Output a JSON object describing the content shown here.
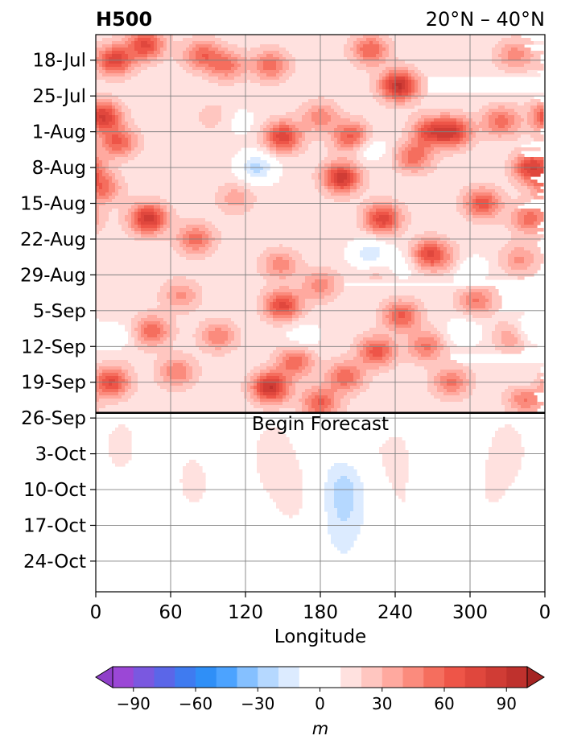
{
  "chart_data": {
    "type": "heatmap",
    "title": "H500",
    "subtitle_right": "20°N – 40°N",
    "xlabel": "Longitude",
    "ylabel": "",
    "x_ticks": [
      "0",
      "60",
      "120",
      "180",
      "240",
      "300",
      "0"
    ],
    "x_tick_values": [
      0,
      60,
      120,
      180,
      240,
      300,
      360
    ],
    "xlim": [
      0,
      360
    ],
    "y_ticks": [
      "18-Jul",
      "25-Jul",
      "1-Aug",
      "8-Aug",
      "15-Aug",
      "22-Aug",
      "29-Aug",
      "5-Sep",
      "12-Sep",
      "19-Sep",
      "26-Sep",
      "3-Oct",
      "10-Oct",
      "17-Oct",
      "24-Oct"
    ],
    "ylim": [
      "13-Jul",
      "30-Oct"
    ],
    "y_inverted": true,
    "grid": true,
    "forecast_start": "25-Sep",
    "annotation": "Begin Forecast",
    "colorbar": {
      "label": "m",
      "ticks": [
        "−90",
        "−60",
        "−30",
        "0",
        "30",
        "60",
        "90"
      ],
      "tick_values": [
        -90,
        -60,
        -30,
        0,
        30,
        60,
        90
      ],
      "levels": [
        -100,
        -90,
        -80,
        -70,
        -60,
        -50,
        -40,
        -30,
        -20,
        -10,
        10,
        20,
        30,
        40,
        50,
        60,
        70,
        80,
        90,
        100
      ],
      "colors": [
        "#9b47d6",
        "#7a58e0",
        "#5b66e8",
        "#3f7bf0",
        "#2f8ff7",
        "#4ca3ff",
        "#85c0ff",
        "#b5d8ff",
        "#dcebff",
        "#ffffff",
        "#ffe1df",
        "#ffc6c0",
        "#ffa99f",
        "#fb8b7d",
        "#f56e5e",
        "#ee5548",
        "#e0473d",
        "#d03c35",
        "#bf312d"
      ],
      "extend_low_color": "#8f3fc9",
      "extend_high_color": "#a52422"
    },
    "observed_blobs": [
      {
        "lon": 15,
        "date": "18-Jul",
        "value": 62
      },
      {
        "lon": 40,
        "date": "15-Jul",
        "value": 58
      },
      {
        "lon": 5,
        "date": "29-Jul",
        "value": 68
      },
      {
        "lon": 18,
        "date": "3-Aug",
        "value": 48
      },
      {
        "lon": 85,
        "date": "17-Jul",
        "value": 42
      },
      {
        "lon": 105,
        "date": "19-Jul",
        "value": 38
      },
      {
        "lon": 140,
        "date": "19-Jul",
        "value": 42
      },
      {
        "lon": 150,
        "date": "2-Aug",
        "value": 62
      },
      {
        "lon": 180,
        "date": "29-Jul",
        "value": 32
      },
      {
        "lon": 205,
        "date": "2-Aug",
        "value": 52
      },
      {
        "lon": 243,
        "date": "23-Jul",
        "value": 78
      },
      {
        "lon": 220,
        "date": "16-Jul",
        "value": 46
      },
      {
        "lon": 268,
        "date": "1-Aug",
        "value": 52
      },
      {
        "lon": 287,
        "date": "1-Aug",
        "value": 60
      },
      {
        "lon": 325,
        "date": "30-Jul",
        "value": 42
      },
      {
        "lon": 350,
        "date": "8-Aug",
        "value": 66
      },
      {
        "lon": 336,
        "date": "17-Jul",
        "value": 32
      },
      {
        "lon": 42,
        "date": "18-Aug",
        "value": 72
      },
      {
        "lon": 5,
        "date": "12-Aug",
        "value": 42
      },
      {
        "lon": 80,
        "date": "22-Aug",
        "value": 42
      },
      {
        "lon": 112,
        "date": "14-Aug",
        "value": 22
      },
      {
        "lon": 197,
        "date": "10-Aug",
        "value": 72
      },
      {
        "lon": 230,
        "date": "18-Aug",
        "value": 62
      },
      {
        "lon": 255,
        "date": "6-Aug",
        "value": 42
      },
      {
        "lon": 310,
        "date": "15-Aug",
        "value": 52
      },
      {
        "lon": 348,
        "date": "18-Aug",
        "value": 42
      },
      {
        "lon": 268,
        "date": "25-Aug",
        "value": 58
      },
      {
        "lon": 148,
        "date": "27-Aug",
        "value": 32
      },
      {
        "lon": 340,
        "date": "26-Aug",
        "value": 28
      },
      {
        "lon": 150,
        "date": "4-Sep",
        "value": 60
      },
      {
        "lon": 180,
        "date": "31-Aug",
        "value": 32
      },
      {
        "lon": 305,
        "date": "3-Sep",
        "value": 38
      },
      {
        "lon": 68,
        "date": "2-Sep",
        "value": 28
      },
      {
        "lon": 245,
        "date": "6-Sep",
        "value": 48
      },
      {
        "lon": 45,
        "date": "9-Sep",
        "value": 44
      },
      {
        "lon": 225,
        "date": "13-Sep",
        "value": 52
      },
      {
        "lon": 265,
        "date": "12-Sep",
        "value": 38
      },
      {
        "lon": 335,
        "date": "10-Sep",
        "value": 34
      },
      {
        "lon": 98,
        "date": "10-Sep",
        "value": 34
      },
      {
        "lon": 160,
        "date": "15-Sep",
        "value": 44
      },
      {
        "lon": 12,
        "date": "19-Sep",
        "value": 58
      },
      {
        "lon": 65,
        "date": "17-Sep",
        "value": 36
      },
      {
        "lon": 140,
        "date": "20-Sep",
        "value": 76
      },
      {
        "lon": 200,
        "date": "18-Sep",
        "value": 44
      },
      {
        "lon": 285,
        "date": "19-Sep",
        "value": 38
      },
      {
        "lon": 180,
        "date": "23-Sep",
        "value": 48
      },
      {
        "lon": 345,
        "date": "22-Sep",
        "value": 46
      },
      {
        "lon": 290,
        "date": "27-Aug",
        "value": 22
      },
      {
        "lon": 95,
        "date": "29-Jul",
        "value": 12
      },
      {
        "lon": 225,
        "date": "28-Aug",
        "value": 14
      },
      {
        "lon": 20,
        "date": "12-Sep",
        "value": 20
      },
      {
        "lon": 129,
        "date": "8-Aug",
        "value": -38
      },
      {
        "lon": 220,
        "date": "25-Aug",
        "value": -36
      },
      {
        "lon": 297,
        "date": "28-Aug",
        "value": -34
      },
      {
        "lon": 18,
        "date": "11-Sep",
        "value": -32
      },
      {
        "lon": 345,
        "date": "9-Sep",
        "value": -28
      },
      {
        "lon": 347,
        "date": "20-Sep",
        "value": -18
      },
      {
        "lon": 218,
        "date": "4-Aug",
        "value": -18
      },
      {
        "lon": 295,
        "date": "9-Sep",
        "value": -18
      },
      {
        "lon": 165,
        "date": "10-Sep",
        "value": -14
      },
      {
        "lon": 245,
        "date": "27-Aug",
        "value": -14
      },
      {
        "lon": 115,
        "date": "30-Jul",
        "value": -10
      }
    ],
    "forecast_blobs": [
      {
        "lon": 142,
        "date": "4-Oct",
        "value": 16
      },
      {
        "lon": 158,
        "date": "12-Oct",
        "value": 14
      },
      {
        "lon": 78,
        "date": "9-Oct",
        "value": 14
      },
      {
        "lon": 245,
        "date": "5-Oct",
        "value": 16
      },
      {
        "lon": 252,
        "date": "17-Oct",
        "value": 12
      },
      {
        "lon": 330,
        "date": "3-Oct",
        "value": 14
      },
      {
        "lon": 315,
        "date": "12-Oct",
        "value": 10
      },
      {
        "lon": 210,
        "date": "2-Oct",
        "value": 12
      },
      {
        "lon": 200,
        "date": "10-Oct",
        "value": -34
      },
      {
        "lon": 198,
        "date": "20-Oct",
        "value": -18
      },
      {
        "lon": 265,
        "date": "6-Oct",
        "value": -12
      },
      {
        "lon": 20,
        "date": "2-Oct",
        "value": 12
      }
    ]
  }
}
